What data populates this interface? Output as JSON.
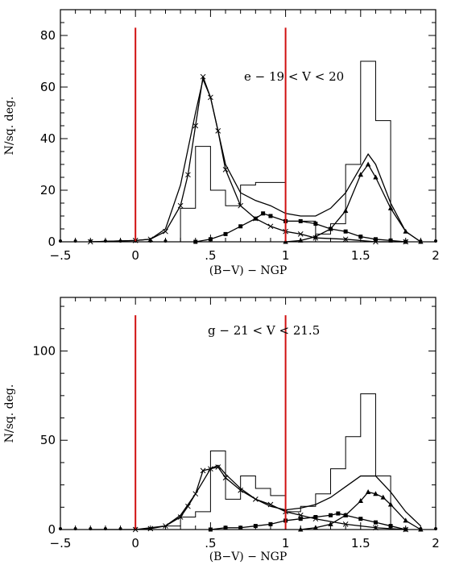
{
  "chart_data": [
    {
      "type": "line",
      "panel": "top",
      "annotation": "e − 19 < V < 20",
      "xlabel": "(B−V) − NGP",
      "ylabel": "N/sq. deg.",
      "xlim": [
        -0.5,
        2.0
      ],
      "ylim": [
        0,
        90
      ],
      "xticks": [
        -0.5,
        0,
        0.5,
        1,
        1.5,
        2
      ],
      "xtick_labels": [
        "−.5",
        "0",
        ".5",
        "1",
        "1.5",
        "2"
      ],
      "yticks": [
        0,
        20,
        40,
        60,
        80
      ],
      "ytick_labels": [
        "0",
        "20",
        "40",
        "60",
        "80"
      ],
      "vertical_lines": [
        0,
        1
      ],
      "vertical_line_top": 83,
      "histogram": {
        "edges": [
          -0.5,
          0.3,
          0.4,
          0.5,
          0.6,
          0.7,
          0.8,
          1.0,
          1.2,
          1.3,
          1.4,
          1.5,
          1.6,
          1.7
        ],
        "values": [
          0,
          13,
          37,
          20,
          14,
          22,
          23,
          8,
          3,
          7,
          30,
          70,
          47,
          0
        ]
      },
      "series": [
        {
          "marker": "none",
          "x": [
            -0.3,
            0.0,
            0.1,
            0.2,
            0.3,
            0.4,
            0.45,
            0.5,
            0.6,
            0.7,
            0.8,
            0.9,
            1.0,
            1.1,
            1.2,
            1.3,
            1.4,
            1.5,
            1.55,
            1.6,
            1.7,
            1.8,
            1.9
          ],
          "values": [
            0,
            0.5,
            1,
            5,
            22,
            50,
            63,
            56,
            30,
            19,
            16,
            14,
            11,
            10,
            10,
            13,
            19,
            29,
            34,
            30,
            15,
            4,
            0
          ]
        },
        {
          "marker": "cross",
          "x": [
            -0.3,
            0.0,
            0.1,
            0.2,
            0.3,
            0.35,
            0.4,
            0.45,
            0.5,
            0.55,
            0.6,
            0.7,
            0.8,
            0.9,
            1.0,
            1.1,
            1.2,
            1.4,
            1.6,
            1.8
          ],
          "values": [
            0,
            0.5,
            1,
            4,
            14,
            26,
            45,
            64,
            56,
            43,
            28,
            14,
            9,
            6,
            4,
            3,
            1.5,
            1,
            0,
            0
          ]
        },
        {
          "marker": "square",
          "x": [
            0.4,
            0.5,
            0.6,
            0.7,
            0.8,
            0.85,
            0.9,
            1.0,
            1.1,
            1.2,
            1.3,
            1.4,
            1.5,
            1.6,
            1.7,
            1.8
          ],
          "values": [
            0,
            1,
            3,
            6,
            9,
            11,
            10,
            8,
            8,
            7,
            5,
            4,
            2,
            1,
            0.5,
            0
          ]
        },
        {
          "marker": "triangle",
          "x": [
            1.0,
            1.1,
            1.2,
            1.3,
            1.4,
            1.5,
            1.55,
            1.6,
            1.7,
            1.8,
            1.9
          ],
          "values": [
            0,
            0.5,
            2,
            5,
            12,
            26,
            30,
            25,
            13,
            4,
            0
          ]
        },
        {
          "marker": "dot",
          "x": [
            -0.5,
            -0.4,
            -0.3,
            -0.2,
            -0.1,
            0.0,
            0.1,
            0.2,
            1.9,
            2.0
          ],
          "values": [
            0,
            0,
            0,
            0,
            0,
            0,
            0,
            0,
            0,
            0
          ]
        }
      ]
    },
    {
      "type": "line",
      "panel": "bottom",
      "annotation": "g − 21 < V < 21.5",
      "xlabel": "(B−V) − NGP",
      "ylabel": "N/sq. deg.",
      "xlim": [
        -0.5,
        2.0
      ],
      "ylim": [
        0,
        130
      ],
      "xticks": [
        -0.5,
        0,
        0.5,
        1,
        1.5,
        2
      ],
      "xtick_labels": [
        "−.5",
        "0",
        ".5",
        "1",
        "1.5",
        "2"
      ],
      "yticks": [
        0,
        50,
        100
      ],
      "ytick_labels": [
        "0",
        "50",
        "100"
      ],
      "vertical_lines": [
        0,
        1
      ],
      "vertical_line_top": 120,
      "histogram": {
        "edges": [
          -0.5,
          0.2,
          0.3,
          0.4,
          0.5,
          0.6,
          0.7,
          0.8,
          0.9,
          1.0,
          1.1,
          1.2,
          1.3,
          1.4,
          1.5,
          1.6,
          1.7
        ],
        "values": [
          0,
          2,
          7,
          10,
          44,
          17,
          30,
          23,
          19,
          10,
          13,
          20,
          34,
          52,
          76,
          30,
          0
        ]
      },
      "series": [
        {
          "marker": "none",
          "x": [
            -0.3,
            0.0,
            0.2,
            0.3,
            0.4,
            0.5,
            0.55,
            0.6,
            0.7,
            0.8,
            0.9,
            1.0,
            1.1,
            1.2,
            1.3,
            1.4,
            1.5,
            1.6,
            1.7,
            1.8,
            1.9
          ],
          "values": [
            0,
            0,
            2,
            8,
            20,
            34,
            36,
            31,
            23,
            17,
            13,
            11,
            12,
            14,
            18,
            24,
            30,
            30,
            21,
            10,
            2
          ]
        },
        {
          "marker": "cross",
          "x": [
            0.0,
            0.1,
            0.2,
            0.3,
            0.35,
            0.4,
            0.45,
            0.5,
            0.55,
            0.6,
            0.7,
            0.8,
            0.9,
            1.0,
            1.1,
            1.2,
            1.4,
            1.6,
            1.8
          ],
          "values": [
            0,
            0.5,
            2,
            7,
            13,
            20,
            33,
            34,
            35,
            29,
            22,
            17,
            14,
            10,
            8,
            6,
            3,
            1,
            0
          ]
        },
        {
          "marker": "square",
          "x": [
            0.5,
            0.6,
            0.7,
            0.8,
            0.9,
            1.0,
            1.1,
            1.2,
            1.3,
            1.35,
            1.4,
            1.5,
            1.6,
            1.7,
            1.8
          ],
          "values": [
            0,
            1,
            1,
            2,
            3,
            5,
            6,
            7,
            8,
            9,
            8,
            6,
            4,
            2,
            0
          ]
        },
        {
          "marker": "triangle",
          "x": [
            1.1,
            1.2,
            1.3,
            1.4,
            1.5,
            1.55,
            1.6,
            1.65,
            1.7,
            1.8,
            1.9
          ],
          "values": [
            0,
            1,
            3,
            8,
            16,
            21,
            20,
            18,
            14,
            5,
            0
          ]
        },
        {
          "marker": "dot",
          "x": [
            -0.5,
            -0.4,
            -0.3,
            -0.2,
            -0.1,
            0.0,
            0.1,
            1.9,
            2.0
          ],
          "values": [
            0,
            0,
            0,
            0,
            0,
            0,
            0,
            0,
            0
          ]
        }
      ]
    }
  ]
}
